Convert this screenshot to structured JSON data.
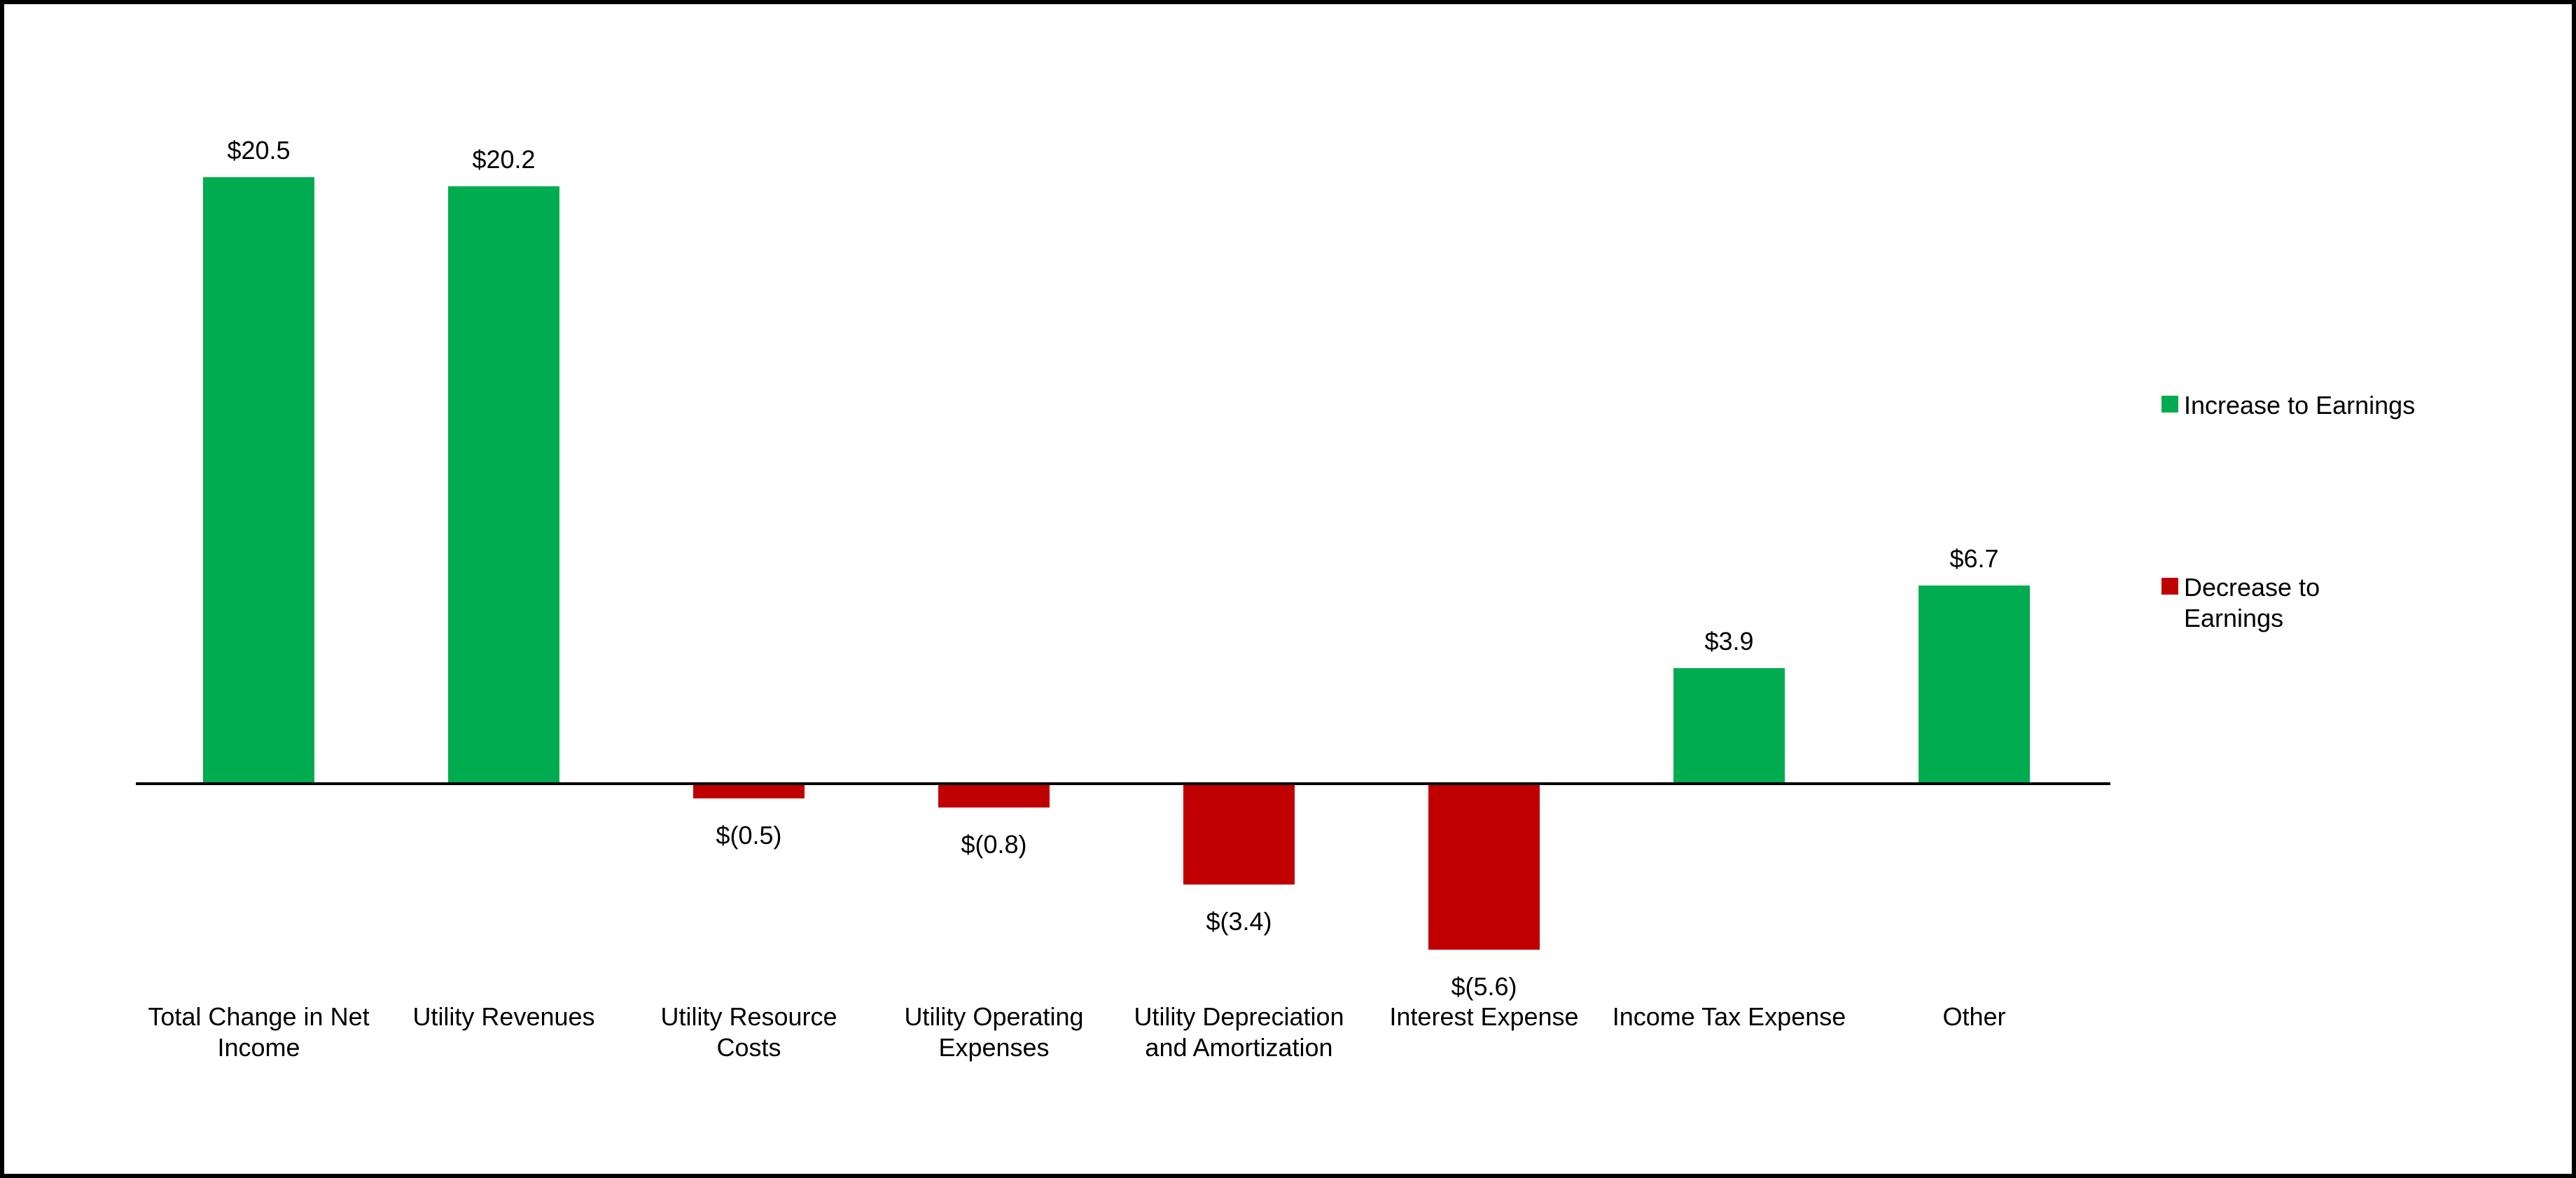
{
  "frame": {
    "background": "#FFFFFF",
    "border_color": "#000000"
  },
  "chart_data": {
    "type": "bar",
    "title": "",
    "xlabel": "",
    "ylabel": "",
    "grid": false,
    "y_axis_visible": false,
    "baseline_value": 0,
    "ylim": [
      -6,
      21
    ],
    "categories": [
      "Total Change in Net Income",
      "Utility Revenues",
      "Utility Resource Costs",
      "Utility Operating Expenses",
      "Utility Depreciation and Amortization",
      "Interest Expense",
      "Income Tax Expense",
      "Other"
    ],
    "category_label_lines": [
      [
        "Total Change in Net",
        "Income"
      ],
      [
        "Utility Revenues"
      ],
      [
        "Utility Resource",
        "Costs"
      ],
      [
        "Utility Operating",
        "Expenses"
      ],
      [
        "Utility Depreciation",
        "and Amortization"
      ],
      [
        "Interest Expense"
      ],
      [
        "Income Tax Expense"
      ],
      [
        "Other"
      ]
    ],
    "values": [
      20.5,
      20.2,
      -0.5,
      -0.8,
      -3.4,
      -5.6,
      3.9,
      6.7
    ],
    "value_labels": [
      "$20.5",
      "$20.2",
      "$(0.5)",
      "$(0.8)",
      "$(3.4)",
      "$(5.6)",
      "$3.9",
      "$6.7"
    ],
    "colors": {
      "increase": "#00AC4F",
      "decrease": "#C00000",
      "axis": "#000000",
      "text": "#000000"
    },
    "legend_position": "right",
    "legend": [
      {
        "label": "Increase to Earnings",
        "label_lines": [
          "Increase to Earnings"
        ],
        "color": "#00AC4F"
      },
      {
        "label": "Decrease to Earnings",
        "label_lines": [
          "Decrease to",
          "Earnings"
        ],
        "color": "#C00000"
      }
    ]
  }
}
